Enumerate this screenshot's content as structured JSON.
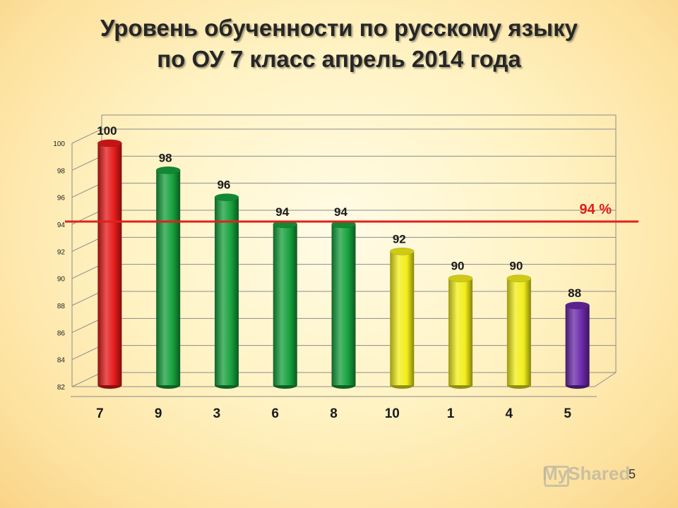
{
  "title": {
    "line1": "Уровень обученности по русскому языку",
    "line2": "по ОУ 7 класс апрель 2014 года"
  },
  "chart_data": {
    "type": "bar",
    "categories": [
      "7",
      "9",
      "3",
      "6",
      "8",
      "10",
      "1",
      "4",
      "5"
    ],
    "values": [
      100,
      98,
      96,
      94,
      94,
      92,
      90,
      90,
      88
    ],
    "bar_colors": [
      "#e41a1a",
      "#16a03c",
      "#16a03c",
      "#16a03c",
      "#16a03c",
      "#f2ee1a",
      "#f2ee1a",
      "#f2ee1a",
      "#6a28a8"
    ],
    "ylim": [
      82,
      100
    ],
    "yticks": [
      82,
      84,
      86,
      88,
      90,
      92,
      94,
      96,
      98,
      100
    ],
    "reference_line": {
      "value": 94,
      "label": "94 %",
      "color": "#e0201c"
    },
    "grid": true,
    "legend": "none"
  },
  "watermark": {
    "text": "MyShared",
    "icon": "cart-icon"
  },
  "page_number": "5"
}
